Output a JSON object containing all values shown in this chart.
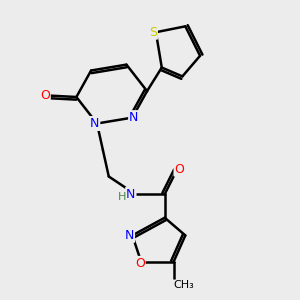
{
  "bg_color": "#ececec",
  "bond_color": "#000000",
  "bond_width": 1.8,
  "atom_colors": {
    "N": "#0000ff",
    "O": "#ff0000",
    "S": "#cccc00",
    "C": "#000000",
    "H": "#4a8a4a"
  },
  "font_size": 9,
  "fig_size": [
    3.0,
    3.0
  ],
  "dpi": 100
}
